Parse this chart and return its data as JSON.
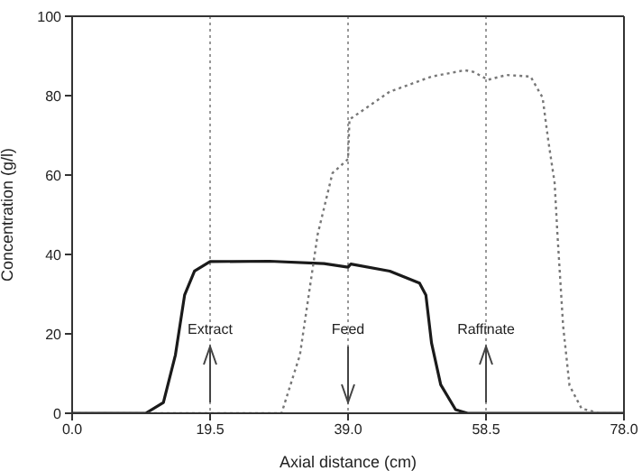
{
  "chart_data": {
    "type": "line",
    "xlabel": "Axial distance (cm)",
    "ylabel": "Concentration (g/l)",
    "xlim": [
      0,
      78
    ],
    "xticks": [
      {
        "value": 0,
        "label": "0.0"
      },
      19.5,
      {
        "value": 39,
        "label": "39.0"
      },
      58.5,
      {
        "value": 78,
        "label": "78.0"
      }
    ],
    "ylim": [
      0,
      100
    ],
    "yticks": [
      0,
      20,
      40,
      60,
      80,
      100
    ],
    "grid": "x",
    "marker": "none",
    "series": [
      {
        "color": "#1a1a1a",
        "line_style": "solid",
        "x": [
          0,
          10.4,
          12.9,
          14.6,
          15.9,
          17.3,
          19.5,
          27.9,
          35.6,
          39,
          39.4,
          44.9,
          49.1,
          50,
          50.8,
          52.1,
          54.2,
          55.9,
          78
        ],
        "values": [
          0,
          0,
          2.7,
          14.7,
          29.8,
          35.8,
          38.2,
          38.3,
          37.7,
          36.8,
          37.6,
          35.8,
          32.8,
          29.8,
          17.7,
          7.2,
          0.9,
          0,
          0
        ]
      },
      {
        "color": "#777777",
        "line_style": "dotted",
        "x": [
          0,
          29.6,
          32.2,
          34.7,
          36.8,
          39,
          39.2,
          44.9,
          50.8,
          55.5,
          56.7,
          58.8,
          61.4,
          64.8,
          66.5,
          67.3,
          68.2,
          68.6,
          69.4,
          70.3,
          72,
          74.5,
          78
        ],
        "values": [
          0,
          0,
          14.7,
          45,
          60.5,
          64,
          74,
          81,
          84.8,
          86.4,
          86,
          84,
          85.2,
          84.8,
          79.5,
          68.7,
          58,
          45,
          22,
          7,
          1.2,
          0,
          0
        ]
      }
    ],
    "annotations": [
      "Extract",
      "Feed",
      "Raffinate"
    ]
  }
}
